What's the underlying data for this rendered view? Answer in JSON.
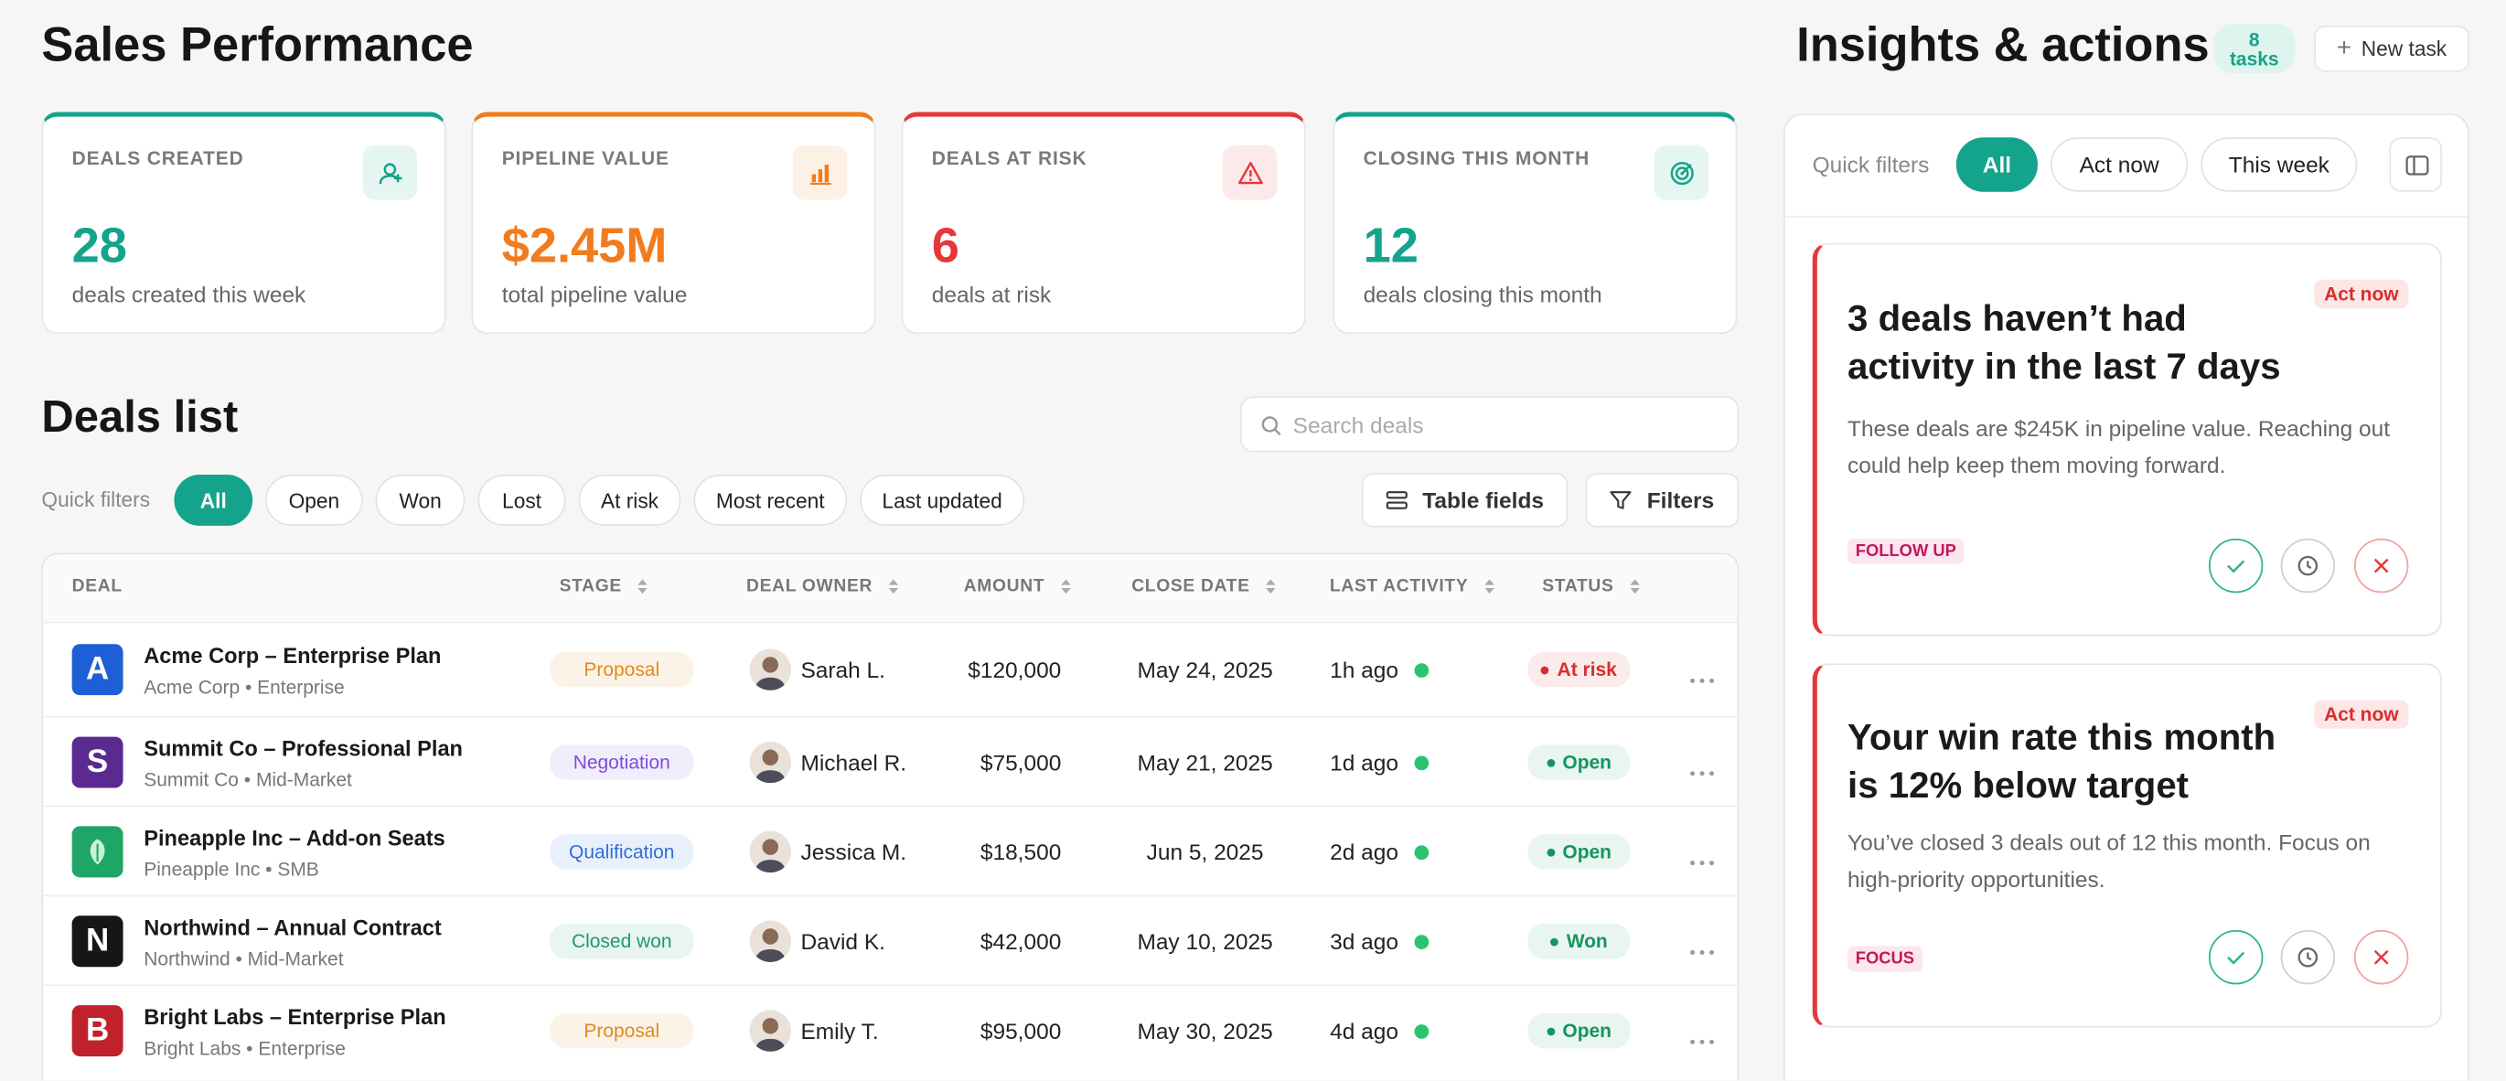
{
  "header": {
    "title": "Sales Performance"
  },
  "stats": [
    {
      "label": "DEALS CREATED",
      "value": "28",
      "caption": "deals created this week",
      "color": "#14a38b"
    },
    {
      "label": "PIPELINE VALUE",
      "value": "$2.45M",
      "caption": "total pipeline value",
      "color": "#f07c1e"
    },
    {
      "label": "DEALS AT RISK",
      "value": "6",
      "caption": "deals at risk",
      "color": "#e5383b"
    },
    {
      "label": "CLOSING THIS MONTH",
      "value": "12",
      "caption": "deals closing this month",
      "color": "#14a38b"
    }
  ],
  "deals": {
    "title": "Deals list",
    "search_placeholder": "Search deals",
    "quick_filters_label": "Quick filters",
    "filters": [
      "All",
      "Open",
      "Won",
      "Lost",
      "At risk",
      "Most recent",
      "Last updated"
    ],
    "buttons": [
      "Table fields",
      "Filters"
    ],
    "columns": [
      "DEAL",
      "STAGE",
      "DEAL OWNER",
      "AMOUNT",
      "CLOSE DATE",
      "LAST ACTIVITY",
      "STATUS"
    ],
    "rows": [
      {
        "logo": "A",
        "logo_color": "#1f5fd6",
        "name": "Acme Corp – Enterprise Plan",
        "sub": "Acme Corp • Enterprise",
        "stage": "Proposal",
        "stage_color": "#e08a1e",
        "owner": "Sarah L.",
        "amount": "$120,000",
        "close_date": "May 24, 2025",
        "last_activity": "1h ago",
        "status": "At risk",
        "status_color": "#d92d2d"
      },
      {
        "logo": "S",
        "logo_color": "#5b2a91",
        "name": "Summit Co – Professional Plan",
        "sub": "Summit Co • Mid-Market",
        "stage": "Negotiation",
        "stage_color": "#7c4ddb",
        "owner": "Michael R.",
        "amount": "$75,000",
        "close_date": "May 21, 2025",
        "last_activity": "1d ago",
        "status": "Open",
        "status_color": "#16945f"
      },
      {
        "logo_color": "#1fa565",
        "name": "Pineapple Inc – Add-on Seats",
        "sub": "Pineapple Inc • SMB",
        "stage": "Qualification",
        "stage_color": "#2f6fd6",
        "owner": "Jessica M.",
        "amount": "$18,500",
        "close_date": "Jun 5, 2025",
        "last_activity": "2d ago",
        "status": "Open",
        "status_color": "#16945f"
      },
      {
        "logo": "N",
        "logo_color": "#161616",
        "name": "Northwind – Annual Contract",
        "sub": "Northwind • Mid-Market",
        "stage": "Closed won",
        "stage_color": "#1f9a6a",
        "owner": "David K.",
        "amount": "$42,000",
        "close_date": "May 10, 2025",
        "last_activity": "3d ago",
        "status": "Won",
        "status_color": "#16945f"
      },
      {
        "logo": "B",
        "logo_color": "#c0222c",
        "name": "Bright Labs – Enterprise Plan",
        "sub": "Bright Labs • Enterprise",
        "stage": "Proposal",
        "stage_color": "#e08a1e",
        "owner": "Emily T.",
        "amount": "$95,000",
        "close_date": "May 30, 2025",
        "last_activity": "4d ago",
        "status": "Open",
        "status_color": "#16945f"
      }
    ]
  },
  "insights": {
    "title": "Insights & actions",
    "badge": "8 tasks",
    "new_task": "New task",
    "quick_filters_label": "Quick filters",
    "filters": [
      "All",
      "Act now",
      "This week"
    ],
    "cards": [
      {
        "title": "3 deals haven’t had activity in the last 7 days",
        "priority": "Act now",
        "body": "These deals are $245K in pipeline value. Reaching out could help keep them moving forward.",
        "tag": "FOLLOW UP"
      },
      {
        "title": "Your win rate this month is 12% below target",
        "priority": "Act now",
        "body": "You’ve closed 3 deals out of 12 this month. Focus on high-priority opportunities.",
        "tag": "FOCUS"
      }
    ]
  }
}
